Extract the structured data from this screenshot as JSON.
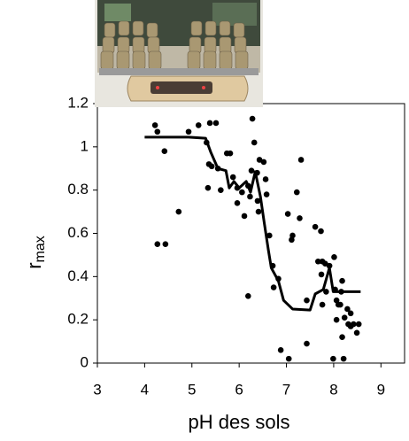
{
  "chart_data": {
    "type": "scatter",
    "xlabel": "pH des sols",
    "ylabel": {
      "text": "r",
      "subscript": "max"
    },
    "xlim": [
      3,
      9.5
    ],
    "xticks": [
      3,
      4,
      5,
      6,
      7,
      8,
      9
    ],
    "ylim": [
      0,
      1.2
    ],
    "yticks": [
      0,
      0.2,
      0.4,
      0.6,
      0.8,
      1,
      1.2
    ],
    "series": [
      {
        "type": "scatter",
        "color": "#000000",
        "x": [
          4.22,
          4.27,
          4.27,
          4.44,
          4.42,
          4.72,
          4.93,
          5.14,
          5.38,
          5.51,
          5.31,
          5.36,
          5.42,
          5.55,
          5.61,
          5.34,
          5.74,
          5.81,
          5.87,
          5.96,
          5.96,
          6.06,
          6.11,
          6.19,
          6.28,
          6.32,
          6.26,
          6.23,
          6.19,
          6.38,
          6.39,
          6.41,
          6.43,
          6.52,
          6.56,
          6.58,
          6.64,
          6.71,
          6.73,
          6.83,
          6.88,
          7.03,
          7.05,
          7.11,
          7.13,
          7.22,
          7.31,
          7.28,
          7.43,
          7.43,
          7.61,
          7.67,
          7.73,
          7.76,
          7.74,
          7.82,
          7.76,
          7.84,
          7.91,
          7.99,
          8.01,
          8.03,
          8.06,
          8.06,
          8.1,
          8.14,
          8.16,
          8.18,
          8.21,
          8.18,
          8.23,
          8.29,
          8.31,
          8.36,
          8.42,
          8.36,
          8.49,
          8.53
        ],
        "values": [
          1.1,
          1.07,
          0.55,
          0.55,
          0.98,
          0.7,
          1.07,
          1.1,
          1.11,
          1.11,
          1.02,
          0.92,
          0.91,
          0.9,
          0.8,
          0.81,
          0.97,
          0.97,
          0.86,
          0.81,
          0.74,
          0.79,
          0.68,
          0.82,
          1.13,
          1.02,
          0.89,
          0.77,
          0.31,
          0.88,
          0.75,
          0.7,
          0.94,
          0.93,
          0.85,
          0.78,
          0.59,
          0.45,
          0.35,
          0.39,
          0.06,
          0.69,
          0.02,
          0.57,
          0.59,
          0.79,
          0.94,
          0.67,
          0.09,
          0.29,
          0.63,
          0.47,
          0.61,
          0.47,
          0.41,
          0.46,
          0.27,
          0.33,
          0.45,
          0.02,
          0.49,
          0.34,
          0.29,
          0.2,
          0.27,
          0.27,
          0.33,
          0.38,
          0.02,
          0.12,
          0.21,
          0.25,
          0.18,
          0.23,
          0.18,
          0.17,
          0.14,
          0.18
        ]
      },
      {
        "type": "line",
        "color": "#000000",
        "x": [
          4.0,
          4.93,
          5.29,
          5.4,
          5.55,
          5.72,
          5.79,
          5.89,
          6.0,
          6.15,
          6.24,
          6.34,
          6.45,
          6.53,
          6.62,
          6.68,
          6.83,
          6.94,
          7.13,
          7.5,
          7.61,
          7.78,
          7.91,
          7.99,
          8.57
        ],
        "values": [
          1.045,
          1.045,
          1.04,
          0.975,
          0.9,
          0.89,
          0.81,
          0.84,
          0.81,
          0.84,
          0.79,
          0.885,
          0.77,
          0.65,
          0.52,
          0.44,
          0.38,
          0.29,
          0.25,
          0.245,
          0.32,
          0.34,
          0.44,
          0.33,
          0.33
        ]
      }
    ]
  }
}
